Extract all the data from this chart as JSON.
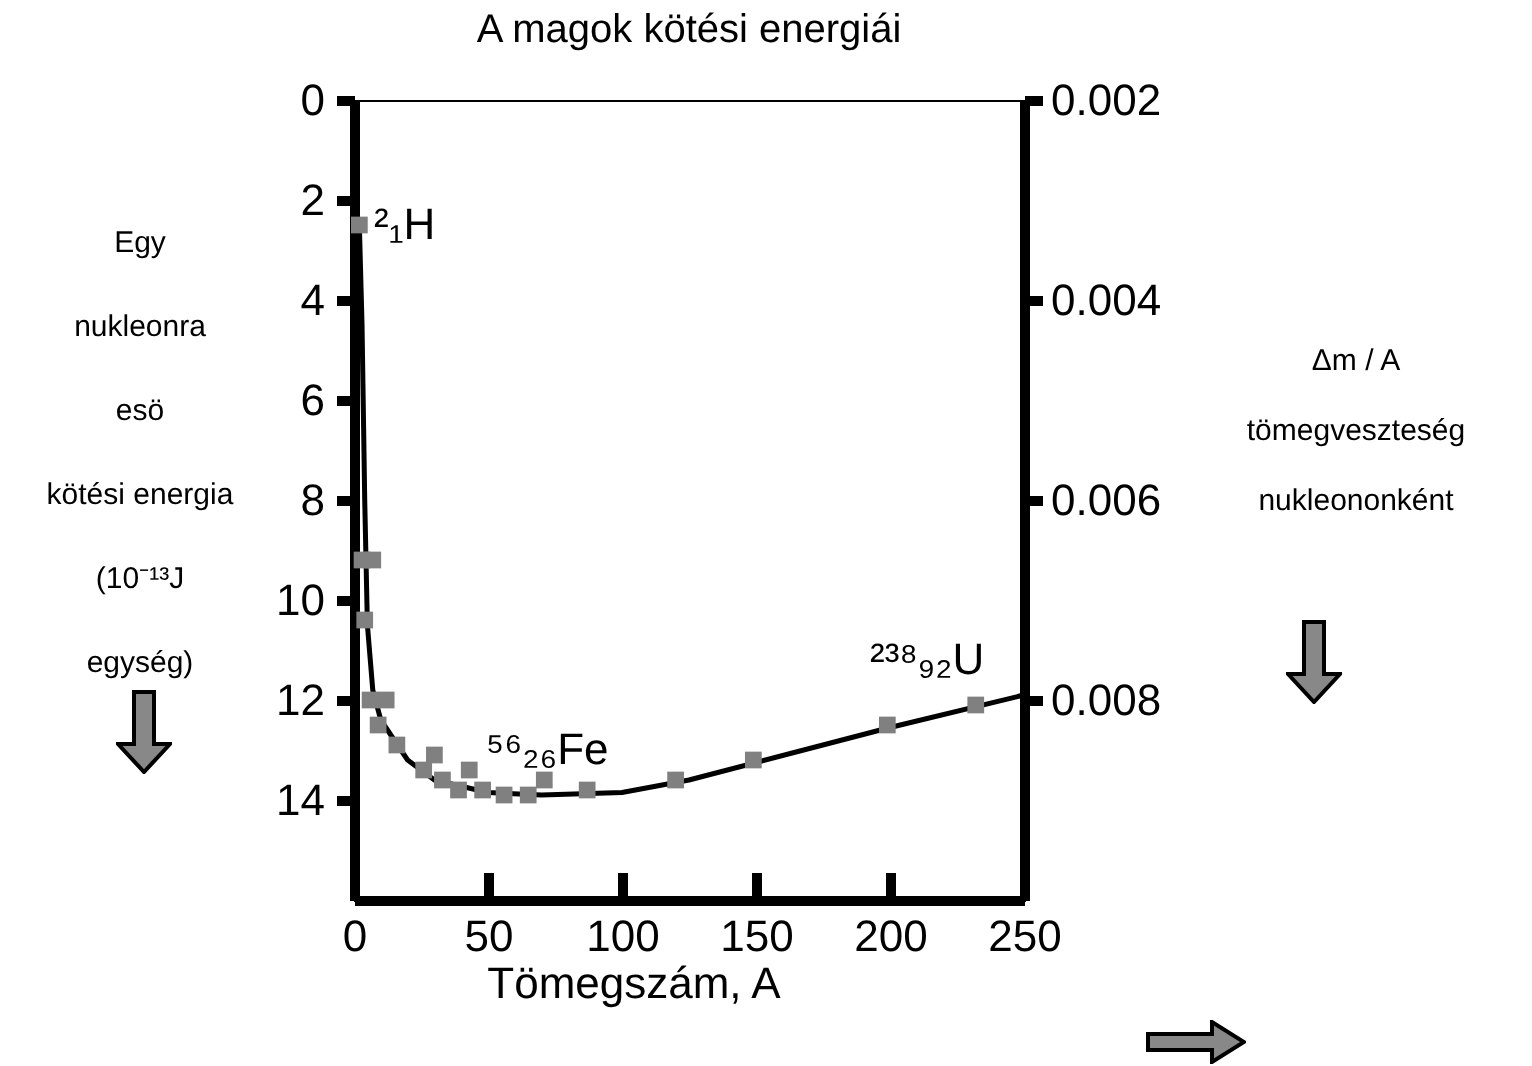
{
  "chart_data": {
    "type": "scatter",
    "title": "A magok kötési energiái",
    "xlabel": "Tömegszám, A",
    "ylabel": "Egy\nnukleonra\nesö\nkötési energia\n(10⁻¹³J\negység)",
    "y2label": "Δm / A\n\ntömegveszteség\nnukleononként",
    "xlim": [
      0,
      250
    ],
    "xticks": [
      0,
      50,
      100,
      150,
      200,
      250
    ],
    "ylim": [
      16,
      0
    ],
    "yticks": [
      0,
      2,
      4,
      6,
      8,
      10,
      12,
      14
    ],
    "y2lim": [
      0.01,
      0.002
    ],
    "y2ticks": [
      0.002,
      0.004,
      0.006,
      0.008
    ],
    "grid": false,
    "line_style": "solid",
    "series": [
      {
        "type": "line",
        "color": "#000000",
        "x": [
          2,
          3,
          4,
          5,
          7,
          10,
          20,
          30,
          50,
          70,
          100,
          125,
          150,
          200,
          250
        ],
        "values": [
          2.5,
          4.5,
          8,
          10.5,
          11.8,
          12.4,
          13.2,
          13.6,
          13.85,
          13.9,
          13.85,
          13.6,
          13.25,
          12.55,
          11.9
        ]
      },
      {
        "marker": "square",
        "color": "#808080",
        "x": [
          2,
          3,
          4,
          6,
          7,
          9,
          12,
          16,
          26,
          30,
          33,
          39,
          43,
          48,
          56,
          65,
          71,
          87,
          120,
          149,
          199,
          232
        ],
        "values": [
          2.5,
          9.2,
          10.4,
          12.0,
          9.2,
          12.5,
          12.0,
          12.9,
          13.4,
          13.1,
          13.6,
          13.8,
          13.4,
          13.8,
          13.9,
          13.9,
          13.6,
          13.8,
          13.6,
          13.2,
          12.5,
          12.1
        ]
      }
    ],
    "annotations": [
      {
        "text": "²₁H",
        "x": 7.5,
        "y": 2.5
      },
      "⁵⁶₂₆Fe",
      "²³⁸₉₂U"
    ]
  }
}
